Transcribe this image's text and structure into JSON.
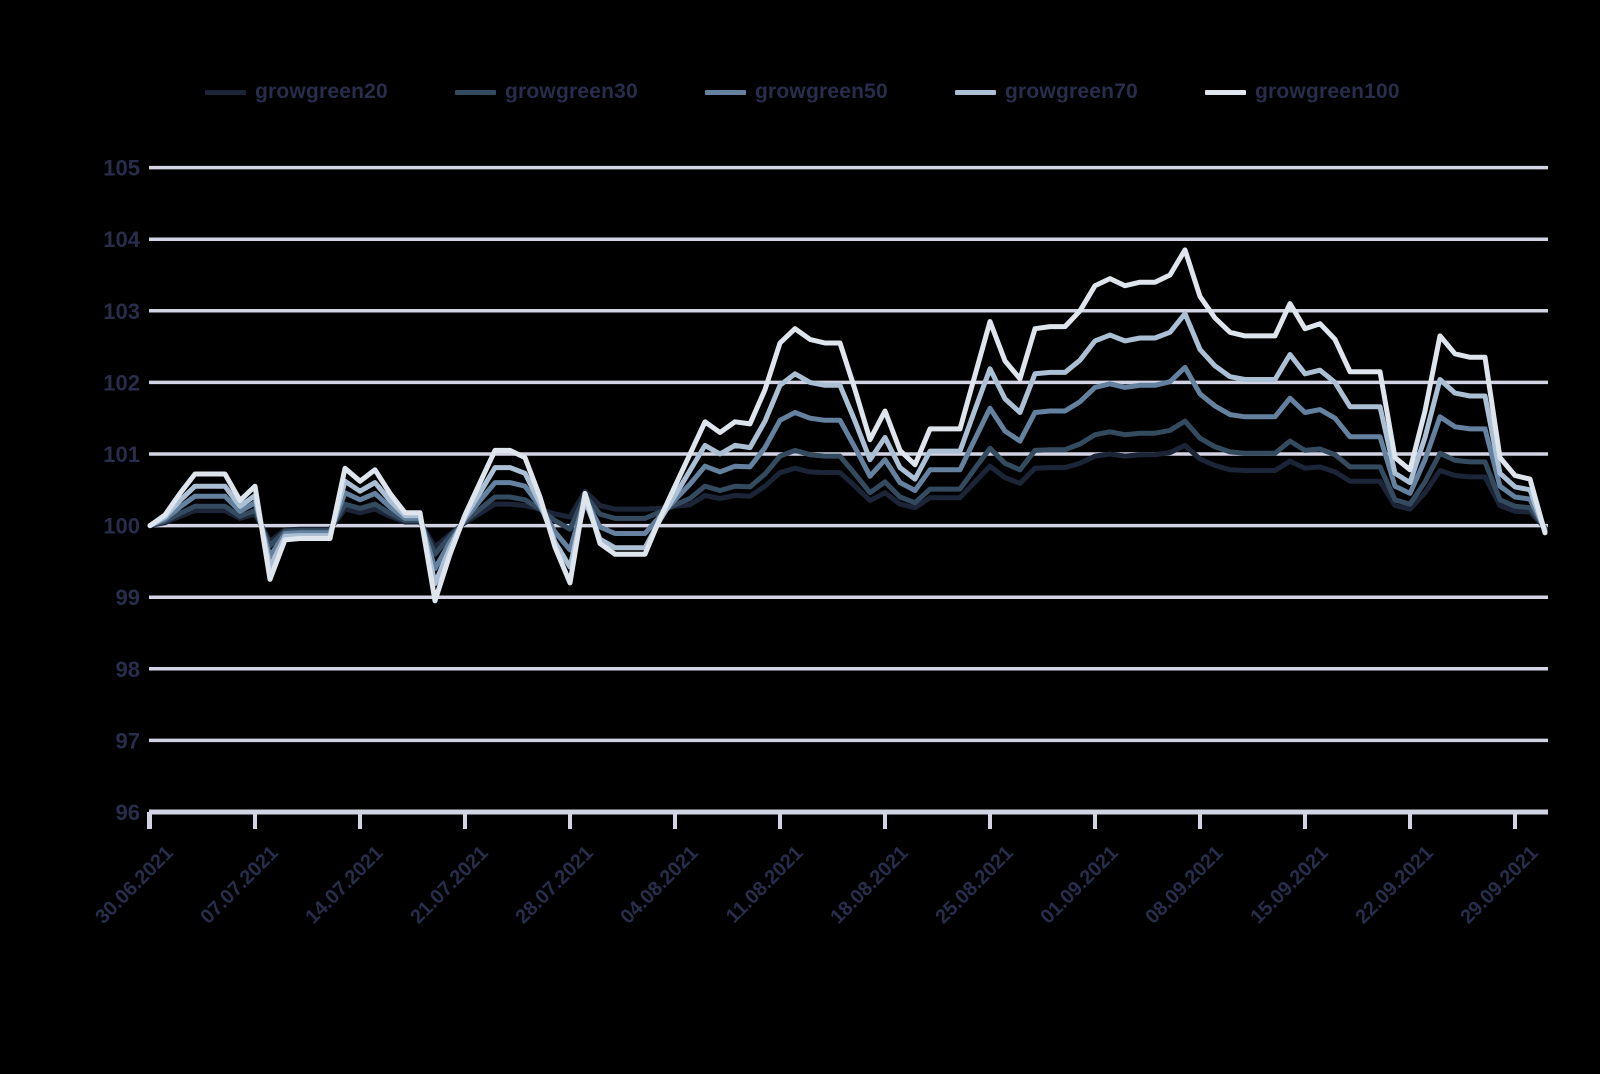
{
  "colors": {
    "background": "#000000",
    "grid": "#d2d3e3",
    "axis": "#d2d3e3",
    "text": "#272d4b"
  },
  "chart_data": {
    "type": "line",
    "title": "",
    "xlabel": "",
    "ylabel": "",
    "grid": true,
    "legend_position": "top",
    "ylim": [
      96,
      105
    ],
    "y_ticks": [
      96,
      97,
      98,
      99,
      100,
      101,
      102,
      103,
      104,
      105
    ],
    "x_tick_labels": [
      "30.06.2021",
      "07.07.2021",
      "14.07.2021",
      "21.07.2021",
      "28.07.2021",
      "04.08.2021",
      "11.08.2021",
      "18.08.2021",
      "25.08.2021",
      "01.09.2021",
      "08.09.2021",
      "15.09.2021",
      "22.09.2021",
      "29.09.2021"
    ],
    "points_per_tick": 7,
    "series": [
      {
        "name": "growgreen20",
        "color": "#1c2438",
        "values": [
          100,
          100.04,
          100.13,
          100.21,
          100.21,
          100.21,
          100.1,
          100.16,
          99.78,
          99.94,
          99.95,
          99.95,
          99.95,
          100.23,
          100.18,
          100.23,
          100.13,
          100.05,
          100.05,
          99.7,
          99.88,
          100.04,
          100.17,
          100.3,
          100.3,
          100.28,
          100.23,
          100.16,
          100.12,
          100.48,
          100.28,
          100.23,
          100.23,
          100.23,
          100.24,
          100.27,
          100.29,
          100.42,
          100.38,
          100.42,
          100.41,
          100.55,
          100.74,
          100.8,
          100.75,
          100.74,
          100.74,
          100.55,
          100.35,
          100.46,
          100.3,
          100.25,
          100.39,
          100.39,
          100.39,
          100.61,
          100.83,
          100.67,
          100.59,
          100.8,
          100.81,
          100.81,
          100.87,
          100.97,
          101.0,
          100.97,
          100.99,
          100.99,
          101.02,
          101.12,
          100.93,
          100.84,
          100.78,
          100.77,
          100.77,
          100.77,
          100.9,
          100.8,
          100.82,
          100.75,
          100.62,
          100.62,
          100.62,
          100.28,
          100.23,
          100.46,
          100.77,
          100.7,
          100.68,
          100.68,
          100.28,
          100.2,
          100.19,
          99.97
        ]
      },
      {
        "name": "growgreen30",
        "color": "#344a5e",
        "values": [
          100,
          100.06,
          100.17,
          100.27,
          100.27,
          100.27,
          100.13,
          100.21,
          99.72,
          99.92,
          99.93,
          99.93,
          99.93,
          100.3,
          100.24,
          100.3,
          100.17,
          100.07,
          100.07,
          99.6,
          99.85,
          100.06,
          100.23,
          100.4,
          100.4,
          100.36,
          100.23,
          100.07,
          99.95,
          100.42,
          100.16,
          100.1,
          100.1,
          100.1,
          100.19,
          100.29,
          100.38,
          100.55,
          100.49,
          100.55,
          100.54,
          100.72,
          100.97,
          101.05,
          100.99,
          100.97,
          100.97,
          100.72,
          100.46,
          100.61,
          100.4,
          100.32,
          100.51,
          100.51,
          100.51,
          100.8,
          101.08,
          100.87,
          100.78,
          101.05,
          101.06,
          101.06,
          101.14,
          101.27,
          101.31,
          101.27,
          101.29,
          101.29,
          101.33,
          101.46,
          101.22,
          101.1,
          101.03,
          101.01,
          101.01,
          101.01,
          101.18,
          101.05,
          101.07,
          100.99,
          100.82,
          100.82,
          100.82,
          100.36,
          100.3,
          100.61,
          101.01,
          100.91,
          100.89,
          100.89,
          100.36,
          100.27,
          100.25,
          99.96
        ]
      },
      {
        "name": "growgreen50",
        "color": "#64819f",
        "values": [
          100,
          100.09,
          100.26,
          100.41,
          100.41,
          100.41,
          100.2,
          100.32,
          99.57,
          99.89,
          99.9,
          99.9,
          99.9,
          100.46,
          100.36,
          100.45,
          100.26,
          100.1,
          100.1,
          99.4,
          99.77,
          100.09,
          100.35,
          100.6,
          100.6,
          100.55,
          100.27,
          99.91,
          99.66,
          100.38,
          99.98,
          99.89,
          99.89,
          99.89,
          100.13,
          100.36,
          100.58,
          100.83,
          100.75,
          100.83,
          100.82,
          101.09,
          101.47,
          101.58,
          101.5,
          101.47,
          101.47,
          101.09,
          100.69,
          100.92,
          100.6,
          100.49,
          100.78,
          100.78,
          100.78,
          101.21,
          101.64,
          101.32,
          101.18,
          101.58,
          101.6,
          101.6,
          101.73,
          101.93,
          101.98,
          101.93,
          101.96,
          101.96,
          102.01,
          102.21,
          101.84,
          101.67,
          101.55,
          101.52,
          101.52,
          101.52,
          101.78,
          101.58,
          101.62,
          101.5,
          101.24,
          101.24,
          101.24,
          100.55,
          100.45,
          100.92,
          101.52,
          101.38,
          101.35,
          101.35,
          100.55,
          100.4,
          100.37,
          99.94
        ]
      },
      {
        "name": "growgreen70",
        "color": "#abc0d4",
        "values": [
          100,
          100.12,
          100.35,
          100.55,
          100.55,
          100.55,
          100.27,
          100.42,
          99.42,
          99.85,
          99.86,
          99.86,
          99.86,
          100.62,
          100.48,
          100.6,
          100.35,
          100.14,
          100.14,
          99.19,
          99.69,
          100.12,
          100.46,
          100.81,
          100.81,
          100.73,
          100.31,
          99.77,
          99.42,
          100.35,
          99.81,
          99.69,
          99.69,
          99.69,
          100.08,
          100.42,
          100.77,
          101.12,
          101.0,
          101.12,
          101.09,
          101.46,
          101.96,
          102.12,
          102.0,
          101.96,
          101.96,
          101.46,
          100.92,
          101.23,
          100.81,
          100.65,
          101.04,
          101.04,
          101.04,
          101.62,
          102.19,
          101.77,
          101.58,
          102.12,
          102.14,
          102.14,
          102.31,
          102.58,
          102.66,
          102.58,
          102.62,
          102.62,
          102.7,
          102.96,
          102.46,
          102.23,
          102.08,
          102.04,
          102.04,
          102.04,
          102.39,
          102.12,
          102.17,
          102.0,
          101.66,
          101.66,
          101.66,
          100.73,
          100.6,
          101.23,
          102.04,
          101.85,
          101.81,
          101.81,
          100.73,
          100.54,
          100.5,
          99.92
        ]
      },
      {
        "name": "growgreen100",
        "color": "#dee5ed",
        "values": [
          100,
          100.15,
          100.45,
          100.72,
          100.72,
          100.72,
          100.35,
          100.55,
          99.25,
          99.8,
          99.82,
          99.82,
          99.82,
          100.8,
          100.62,
          100.78,
          100.45,
          100.18,
          100.18,
          98.95,
          99.6,
          100.15,
          100.6,
          101.05,
          101.05,
          100.95,
          100.4,
          99.7,
          99.2,
          100.45,
          99.75,
          99.6,
          99.6,
          99.6,
          100.1,
          100.55,
          101.0,
          101.45,
          101.3,
          101.45,
          101.42,
          101.9,
          102.55,
          102.75,
          102.6,
          102.55,
          102.55,
          101.9,
          101.2,
          101.6,
          101.05,
          100.85,
          101.35,
          101.35,
          101.35,
          102.1,
          102.85,
          102.3,
          102.05,
          102.75,
          102.78,
          102.78,
          103.0,
          103.35,
          103.45,
          103.35,
          103.4,
          103.4,
          103.5,
          103.85,
          103.2,
          102.9,
          102.7,
          102.65,
          102.65,
          102.65,
          103.1,
          102.75,
          102.82,
          102.6,
          102.15,
          102.15,
          102.15,
          100.95,
          100.78,
          101.6,
          102.65,
          102.4,
          102.35,
          102.35,
          100.95,
          100.7,
          100.65,
          99.9
        ]
      }
    ]
  },
  "legend": {
    "item_lefts": [
      205,
      455,
      705,
      955,
      1205
    ]
  }
}
